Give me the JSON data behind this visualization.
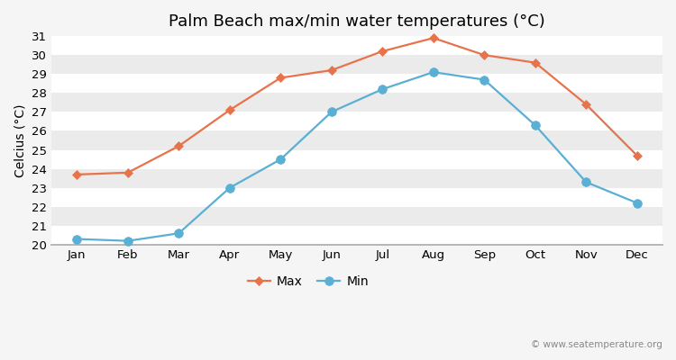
{
  "title": "Palm Beach max/min water temperatures (°C)",
  "ylabel": "Celcius (°C)",
  "months": [
    "Jan",
    "Feb",
    "Mar",
    "Apr",
    "May",
    "Jun",
    "Jul",
    "Aug",
    "Sep",
    "Oct",
    "Nov",
    "Dec"
  ],
  "max_values": [
    23.7,
    23.8,
    25.2,
    27.1,
    28.8,
    29.2,
    30.2,
    30.9,
    30.0,
    29.6,
    27.4,
    24.7
  ],
  "min_values": [
    20.3,
    20.2,
    20.6,
    23.0,
    24.5,
    27.0,
    28.2,
    29.1,
    28.7,
    26.3,
    23.3,
    22.2
  ],
  "max_color": "#e8724a",
  "min_color": "#5aafd4",
  "bg_color": "#f5f5f5",
  "band_light": "#ebebeb",
  "band_dark": "#dedede",
  "grid_color": "#ffffff",
  "ylim": [
    20,
    31
  ],
  "yticks": [
    20,
    21,
    22,
    23,
    24,
    25,
    26,
    27,
    28,
    29,
    30,
    31
  ],
  "watermark": "© www.seatemperature.org",
  "title_fontsize": 13,
  "label_fontsize": 10,
  "tick_fontsize": 9.5,
  "legend_fontsize": 10
}
